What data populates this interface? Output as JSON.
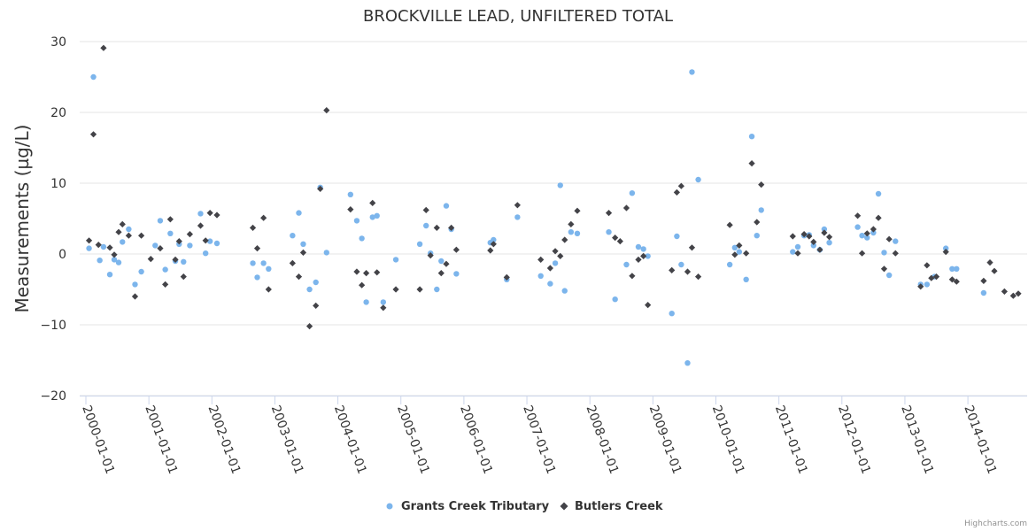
{
  "chart_data": {
    "type": "scatter",
    "title": "BROCKVILLE LEAD, UNFILTERED TOTAL",
    "xlabel": "",
    "ylabel": "Measurements (µg/L)",
    "ylim": [
      -20,
      30
    ],
    "yticks": [
      -20,
      -10,
      0,
      10,
      20,
      30
    ],
    "y_tick_labels": [
      "−20",
      "−10",
      "0",
      "10",
      "20",
      "30"
    ],
    "xlim": [
      2000.0,
      2014.9
    ],
    "x_ticks": [
      2000,
      2001,
      2002,
      2003,
      2004,
      2005,
      2006,
      2007,
      2008,
      2009,
      2010,
      2011,
      2012,
      2013,
      2014
    ],
    "x_tick_labels": [
      "2000-01-01",
      "2001-01-01",
      "2002-01-01",
      "2003-01-01",
      "2004-01-01",
      "2005-01-01",
      "2006-01-01",
      "2007-01-01",
      "2008-01-01",
      "2009-01-01",
      "2010-01-01",
      "2011-01-01",
      "2012-01-01",
      "2013-01-01",
      "2014-01-01"
    ],
    "grid": "horizontal",
    "legend_position": "bottom-center",
    "series": [
      {
        "name": "Grants Creek Tributary",
        "color": "#7cb5ec",
        "marker": "circle",
        "points": [
          [
            2000.05,
            0.8
          ],
          [
            2000.12,
            25.0
          ],
          [
            2000.22,
            -0.9
          ],
          [
            2000.28,
            1.0
          ],
          [
            2000.38,
            -2.9
          ],
          [
            2000.45,
            -0.8
          ],
          [
            2000.52,
            -1.2
          ],
          [
            2000.58,
            1.7
          ],
          [
            2000.68,
            3.5
          ],
          [
            2000.78,
            -4.3
          ],
          [
            2000.88,
            -2.5
          ],
          [
            2001.1,
            1.2
          ],
          [
            2001.18,
            4.7
          ],
          [
            2001.26,
            -2.2
          ],
          [
            2001.34,
            2.9
          ],
          [
            2001.42,
            -1.0
          ],
          [
            2001.48,
            1.4
          ],
          [
            2001.55,
            -1.1
          ],
          [
            2001.65,
            1.2
          ],
          [
            2001.82,
            5.7
          ],
          [
            2001.9,
            0.1
          ],
          [
            2001.97,
            1.8
          ],
          [
            2002.08,
            1.5
          ],
          [
            2002.65,
            -1.3
          ],
          [
            2002.72,
            -3.3
          ],
          [
            2002.82,
            -1.3
          ],
          [
            2002.9,
            -2.1
          ],
          [
            2003.28,
            2.6
          ],
          [
            2003.38,
            5.8
          ],
          [
            2003.45,
            1.4
          ],
          [
            2003.55,
            -5.0
          ],
          [
            2003.65,
            -4.0
          ],
          [
            2003.72,
            9.4
          ],
          [
            2003.82,
            0.2
          ],
          [
            2004.2,
            8.4
          ],
          [
            2004.3,
            4.7
          ],
          [
            2004.38,
            2.2
          ],
          [
            2004.45,
            -6.8
          ],
          [
            2004.55,
            5.2
          ],
          [
            2004.62,
            5.4
          ],
          [
            2004.72,
            -6.8
          ],
          [
            2004.92,
            -0.8
          ],
          [
            2005.3,
            1.4
          ],
          [
            2005.4,
            4.0
          ],
          [
            2005.47,
            0.1
          ],
          [
            2005.57,
            -5.0
          ],
          [
            2005.64,
            -1.0
          ],
          [
            2005.72,
            6.8
          ],
          [
            2005.8,
            3.5
          ],
          [
            2005.88,
            -2.8
          ],
          [
            2006.42,
            1.6
          ],
          [
            2006.47,
            2.0
          ],
          [
            2006.68,
            -3.6
          ],
          [
            2006.85,
            5.2
          ],
          [
            2007.22,
            -3.1
          ],
          [
            2007.37,
            -4.2
          ],
          [
            2007.45,
            -1.3
          ],
          [
            2007.53,
            9.7
          ],
          [
            2007.6,
            -5.2
          ],
          [
            2007.7,
            3.1
          ],
          [
            2007.8,
            2.9
          ],
          [
            2008.3,
            3.1
          ],
          [
            2008.4,
            -6.4
          ],
          [
            2008.58,
            -1.5
          ],
          [
            2008.67,
            8.6
          ],
          [
            2008.77,
            1.0
          ],
          [
            2008.85,
            0.7
          ],
          [
            2008.92,
            -0.3
          ],
          [
            2009.3,
            -8.4
          ],
          [
            2009.38,
            2.5
          ],
          [
            2009.45,
            -1.5
          ],
          [
            2009.55,
            -15.4
          ],
          [
            2009.62,
            25.7
          ],
          [
            2009.72,
            10.5
          ],
          [
            2010.22,
            -1.5
          ],
          [
            2010.3,
            0.9
          ],
          [
            2010.37,
            0.3
          ],
          [
            2010.48,
            -3.6
          ],
          [
            2010.57,
            16.6
          ],
          [
            2010.65,
            2.6
          ],
          [
            2010.72,
            6.2
          ],
          [
            2011.22,
            0.3
          ],
          [
            2011.3,
            1.0
          ],
          [
            2011.4,
            2.6
          ],
          [
            2011.48,
            2.7
          ],
          [
            2011.55,
            1.2
          ],
          [
            2011.65,
            0.6
          ],
          [
            2011.72,
            3.5
          ],
          [
            2011.8,
            1.6
          ],
          [
            2012.25,
            3.8
          ],
          [
            2012.32,
            2.6
          ],
          [
            2012.4,
            2.3
          ],
          [
            2012.5,
            3.0
          ],
          [
            2012.58,
            8.5
          ],
          [
            2012.67,
            0.2
          ],
          [
            2012.75,
            -3.0
          ],
          [
            2012.85,
            1.8
          ],
          [
            2013.25,
            -4.3
          ],
          [
            2013.35,
            -4.3
          ],
          [
            2013.47,
            -3.2
          ],
          [
            2013.65,
            0.8
          ],
          [
            2013.75,
            -2.1
          ],
          [
            2013.82,
            -2.1
          ],
          [
            2014.25,
            -5.5
          ]
        ]
      },
      {
        "name": "Butlers Creek",
        "color": "#434348",
        "marker": "diamond",
        "points": [
          [
            2000.05,
            1.9
          ],
          [
            2000.12,
            16.9
          ],
          [
            2000.2,
            1.3
          ],
          [
            2000.28,
            29.1
          ],
          [
            2000.38,
            0.9
          ],
          [
            2000.45,
            -0.1
          ],
          [
            2000.52,
            3.1
          ],
          [
            2000.58,
            4.2
          ],
          [
            2000.68,
            2.6
          ],
          [
            2000.78,
            -6.0
          ],
          [
            2000.88,
            2.6
          ],
          [
            2001.03,
            -0.7
          ],
          [
            2001.18,
            0.8
          ],
          [
            2001.26,
            -4.3
          ],
          [
            2001.34,
            4.9
          ],
          [
            2001.42,
            -0.8
          ],
          [
            2001.48,
            1.8
          ],
          [
            2001.55,
            -3.2
          ],
          [
            2001.65,
            2.8
          ],
          [
            2001.82,
            4.0
          ],
          [
            2001.9,
            1.9
          ],
          [
            2001.97,
            5.8
          ],
          [
            2002.08,
            5.5
          ],
          [
            2002.65,
            3.7
          ],
          [
            2002.72,
            0.8
          ],
          [
            2002.82,
            5.1
          ],
          [
            2002.9,
            -5.0
          ],
          [
            2003.28,
            -1.3
          ],
          [
            2003.38,
            -3.2
          ],
          [
            2003.45,
            0.2
          ],
          [
            2003.55,
            -10.2
          ],
          [
            2003.65,
            -7.3
          ],
          [
            2003.72,
            9.2
          ],
          [
            2003.82,
            20.3
          ],
          [
            2004.2,
            6.3
          ],
          [
            2004.3,
            -2.5
          ],
          [
            2004.38,
            -4.4
          ],
          [
            2004.45,
            -2.7
          ],
          [
            2004.55,
            7.2
          ],
          [
            2004.62,
            -2.6
          ],
          [
            2004.72,
            -7.6
          ],
          [
            2004.92,
            -5.0
          ],
          [
            2005.3,
            -5.0
          ],
          [
            2005.4,
            6.2
          ],
          [
            2005.47,
            -0.2
          ],
          [
            2005.57,
            3.7
          ],
          [
            2005.64,
            -2.7
          ],
          [
            2005.72,
            -1.4
          ],
          [
            2005.8,
            3.7
          ],
          [
            2005.88,
            0.6
          ],
          [
            2006.42,
            0.5
          ],
          [
            2006.47,
            1.4
          ],
          [
            2006.68,
            -3.3
          ],
          [
            2006.85,
            6.9
          ],
          [
            2007.22,
            -0.8
          ],
          [
            2007.37,
            -2.0
          ],
          [
            2007.45,
            0.4
          ],
          [
            2007.53,
            -0.3
          ],
          [
            2007.6,
            2.0
          ],
          [
            2007.7,
            4.2
          ],
          [
            2007.8,
            6.1
          ],
          [
            2008.3,
            5.8
          ],
          [
            2008.4,
            2.3
          ],
          [
            2008.48,
            1.8
          ],
          [
            2008.58,
            6.5
          ],
          [
            2008.67,
            -3.1
          ],
          [
            2008.77,
            -0.8
          ],
          [
            2008.85,
            -0.3
          ],
          [
            2008.92,
            -7.2
          ],
          [
            2009.3,
            -2.3
          ],
          [
            2009.38,
            8.7
          ],
          [
            2009.45,
            9.6
          ],
          [
            2009.55,
            -2.5
          ],
          [
            2009.62,
            0.9
          ],
          [
            2009.72,
            -3.2
          ],
          [
            2010.22,
            4.1
          ],
          [
            2010.3,
            -0.1
          ],
          [
            2010.37,
            1.2
          ],
          [
            2010.48,
            0.1
          ],
          [
            2010.57,
            12.8
          ],
          [
            2010.65,
            4.5
          ],
          [
            2010.72,
            9.8
          ],
          [
            2011.22,
            2.5
          ],
          [
            2011.3,
            0.1
          ],
          [
            2011.4,
            2.8
          ],
          [
            2011.48,
            2.5
          ],
          [
            2011.55,
            1.7
          ],
          [
            2011.65,
            0.6
          ],
          [
            2011.72,
            3.0
          ],
          [
            2011.8,
            2.4
          ],
          [
            2012.25,
            5.4
          ],
          [
            2012.32,
            0.1
          ],
          [
            2012.4,
            2.9
          ],
          [
            2012.5,
            3.5
          ],
          [
            2012.58,
            5.1
          ],
          [
            2012.67,
            -2.1
          ],
          [
            2012.75,
            2.1
          ],
          [
            2012.85,
            0.1
          ],
          [
            2013.25,
            -4.6
          ],
          [
            2013.35,
            -1.6
          ],
          [
            2013.42,
            -3.4
          ],
          [
            2013.5,
            -3.2
          ],
          [
            2013.65,
            0.3
          ],
          [
            2013.75,
            -3.6
          ],
          [
            2013.82,
            -3.9
          ],
          [
            2014.25,
            -3.8
          ],
          [
            2014.35,
            -1.2
          ],
          [
            2014.42,
            -2.4
          ],
          [
            2014.58,
            -5.3
          ],
          [
            2014.72,
            -5.9
          ],
          [
            2014.8,
            -5.6
          ]
        ]
      }
    ]
  },
  "credits": "Highcharts.com"
}
